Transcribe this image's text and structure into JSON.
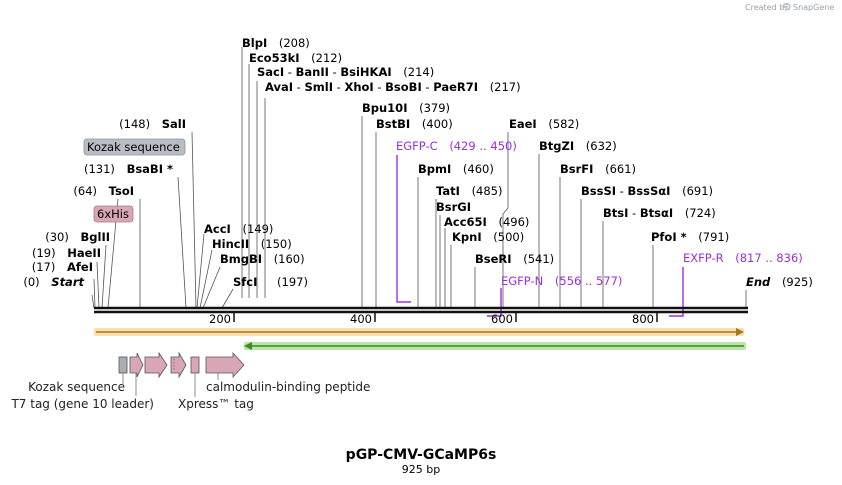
{
  "header": {
    "created_by": "Created by",
    "brand": "SnapGene"
  },
  "title": "pGP-CMV-GCaMP6s",
  "length_label": "925 bp",
  "colors": {
    "primer": "#9b30d9",
    "orf_yellow": "#f2c462",
    "orf_green": "#8ed46b",
    "feature_pink": "#d8a6b5",
    "tag_gray": "#b8bcc4"
  },
  "sites": [
    {
      "name": "BlpI",
      "pos": "(208)"
    },
    {
      "name": "Eco53kI",
      "pos": "(212)"
    },
    {
      "name": "SacI",
      "sep1": " - ",
      "name2": "BanII",
      "sep2": " - ",
      "name3": "BsiHKAI",
      "pos": "(214)"
    },
    {
      "name": "AvaI",
      "sep1": " - ",
      "name2": "SmlI",
      "sep2": " - ",
      "name3": "XhoI",
      "sep3": " - ",
      "name4": "BsoBI",
      "sep4": " - ",
      "name5": "PaeR7I",
      "pos": "(217)"
    },
    {
      "name": "SalI",
      "pos": "(148)"
    },
    {
      "name": "BsaBI *",
      "pos": "(131)"
    },
    {
      "name": "TsoI",
      "pos": "(64)"
    },
    {
      "name": "BglII",
      "pos": "(30)"
    },
    {
      "name": "HaeII",
      "pos": "(19)"
    },
    {
      "name": "AfeI",
      "pos": "(17)"
    },
    {
      "name": "Start",
      "pos": "(0)"
    },
    {
      "name": "AccI",
      "pos": "(149)"
    },
    {
      "name": "HincII",
      "pos": "(150)"
    },
    {
      "name": "BmgBI",
      "pos": "(160)"
    },
    {
      "name": "SfcI",
      "pos": "(197)"
    },
    {
      "name": "Bpu10I",
      "pos": "(379)"
    },
    {
      "name": "BstBI",
      "pos": "(400)"
    },
    {
      "name": "BpmI",
      "pos": "(460)"
    },
    {
      "name": "TatI",
      "pos": "(485)"
    },
    {
      "name": "BsrGI"
    },
    {
      "name": "Acc65I",
      "pos": "(496)"
    },
    {
      "name": "KpnI",
      "pos": "(500)"
    },
    {
      "name": "BseRI",
      "pos": "(541)"
    },
    {
      "name": "EaeI",
      "pos": "(582)"
    },
    {
      "name": "BtgZI",
      "pos": "(632)"
    },
    {
      "name": "BsrFI",
      "pos": "(661)"
    },
    {
      "name": "BssSI",
      "sep1": " - ",
      "name2": "BssSαI",
      "pos": "(691)"
    },
    {
      "name": "BtsI",
      "sep1": " - ",
      "name2": "BtsαI",
      "pos": "(724)"
    },
    {
      "name": "PfoI *",
      "pos": "(791)"
    },
    {
      "name": "End",
      "pos": "(925)"
    }
  ],
  "primers": [
    {
      "name": "EGFP-C",
      "range": "(429 .. 450)"
    },
    {
      "name": "EGFP-N",
      "range": "(556 .. 577)"
    },
    {
      "name": "EXFP-R",
      "range": "(817 .. 836)"
    }
  ],
  "boxed_features": [
    {
      "label": "Kozak sequence"
    },
    {
      "label": "6xHis"
    }
  ],
  "ruler": {
    "ticks": [
      "200",
      "400",
      "600",
      "800"
    ]
  },
  "feature_labels": {
    "kozak": "Kozak sequence",
    "t7": "T7 tag (gene 10 leader)",
    "xpress": "Xpress™ tag",
    "calmodulin": "calmodulin-binding peptide"
  }
}
